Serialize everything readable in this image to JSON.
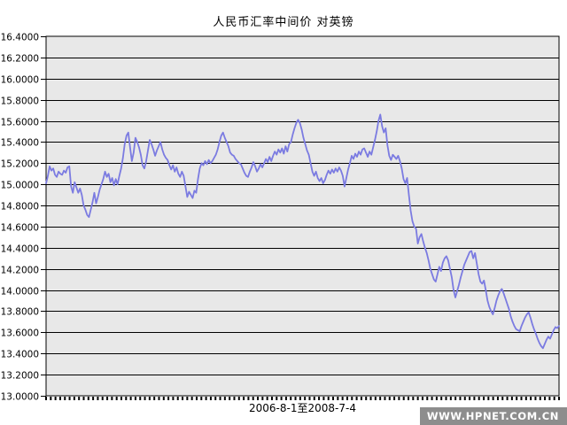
{
  "title": "人民币汇率中间价  对英镑",
  "watermark": {
    "text": "WWW.HPNET.COM.CN",
    "bg": "#8d8d8d",
    "fg": "#ffffff"
  },
  "chart_data": {
    "type": "line",
    "title": "人民币汇率中间价  对英镑",
    "xlabel": "2006-8-1至2008-7-4",
    "ylabel": "",
    "x_range": [
      "2006-8-1",
      "2008-7-4"
    ],
    "ylim": [
      13.0,
      16.4
    ],
    "ytick_step": 0.2,
    "ytick_labels": [
      "16.4000",
      "16.2000",
      "16.0000",
      "15.8000",
      "15.6000",
      "15.4000",
      "15.2000",
      "15.0000",
      "14.8000",
      "14.6000",
      "14.4000",
      "14.2000",
      "14.0000",
      "13.8000",
      "13.6000",
      "13.4000",
      "13.2000",
      "13.0000"
    ],
    "grid": "horizontal",
    "legend": "none",
    "colors": {
      "line": "#7b7be1",
      "plot_bg": "#e8e8e8",
      "grid": "#000000",
      "axis_text": "#000000"
    },
    "values": [
      15.01,
      15.08,
      15.17,
      15.13,
      15.15,
      15.09,
      15.07,
      15.12,
      15.1,
      15.09,
      15.13,
      15.11,
      15.16,
      15.17,
      14.98,
      14.92,
      15.02,
      14.97,
      14.92,
      14.96,
      14.9,
      14.8,
      14.76,
      14.71,
      14.69,
      14.76,
      14.83,
      14.92,
      14.82,
      14.88,
      14.95,
      15.0,
      15.05,
      15.12,
      15.07,
      15.1,
      15.02,
      15.06,
      14.99,
      15.05,
      15.0,
      15.08,
      15.15,
      15.25,
      15.38,
      15.46,
      15.49,
      15.35,
      15.22,
      15.3,
      15.44,
      15.4,
      15.35,
      15.28,
      15.18,
      15.15,
      15.22,
      15.32,
      15.42,
      15.38,
      15.33,
      15.27,
      15.32,
      15.36,
      15.4,
      15.33,
      15.28,
      15.25,
      15.23,
      15.18,
      15.14,
      15.18,
      15.12,
      15.16,
      15.1,
      15.07,
      15.12,
      15.08,
      14.98,
      14.88,
      14.93,
      14.9,
      14.87,
      14.94,
      14.92,
      15.05,
      15.15,
      15.2,
      15.18,
      15.22,
      15.19,
      15.23,
      15.2,
      15.22,
      15.25,
      15.28,
      15.33,
      15.4,
      15.46,
      15.49,
      15.44,
      15.4,
      15.36,
      15.3,
      15.28,
      15.27,
      15.24,
      15.22,
      15.2,
      15.19,
      15.15,
      15.11,
      15.08,
      15.07,
      15.12,
      15.16,
      15.21,
      15.17,
      15.12,
      15.15,
      15.19,
      15.16,
      15.2,
      15.24,
      15.21,
      15.26,
      15.22,
      15.27,
      15.31,
      15.28,
      15.33,
      15.3,
      15.34,
      15.29,
      15.36,
      15.31,
      15.38,
      15.4,
      15.47,
      15.53,
      15.58,
      15.61,
      15.58,
      15.52,
      15.44,
      15.38,
      15.32,
      15.28,
      15.2,
      15.12,
      15.08,
      15.12,
      15.06,
      15.03,
      15.06,
      15.01,
      15.04,
      15.09,
      15.13,
      15.1,
      15.14,
      15.11,
      15.15,
      15.12,
      15.16,
      15.13,
      15.08,
      14.98,
      15.06,
      15.14,
      15.2,
      15.27,
      15.24,
      15.29,
      15.26,
      15.31,
      15.28,
      15.33,
      15.34,
      15.3,
      15.26,
      15.31,
      15.28,
      15.35,
      15.42,
      15.5,
      15.6,
      15.66,
      15.55,
      15.49,
      15.53,
      15.37,
      15.27,
      15.23,
      15.28,
      15.26,
      15.24,
      15.27,
      15.22,
      15.15,
      15.05,
      15.01,
      15.06,
      14.9,
      14.75,
      14.65,
      14.6,
      14.58,
      14.44,
      14.5,
      14.53,
      14.46,
      14.4,
      14.35,
      14.28,
      14.2,
      14.15,
      14.1,
      14.08,
      14.15,
      14.22,
      14.18,
      14.26,
      14.3,
      14.32,
      14.28,
      14.2,
      14.12,
      14.0,
      13.93,
      13.99,
      14.05,
      14.12,
      14.18,
      14.24,
      14.28,
      14.32,
      14.36,
      14.37,
      14.3,
      14.35,
      14.25,
      14.15,
      14.08,
      14.06,
      14.09,
      14.0,
      13.9,
      13.84,
      13.8,
      13.77,
      13.83,
      13.9,
      13.95,
      13.99,
      14.01,
      13.97,
      13.92,
      13.87,
      13.82,
      13.75,
      13.7,
      13.66,
      13.63,
      13.62,
      13.61,
      13.66,
      13.7,
      13.74,
      13.77,
      13.79,
      13.74,
      13.68,
      13.63,
      13.59,
      13.54,
      13.5,
      13.47,
      13.45,
      13.49,
      13.53,
      13.56,
      13.54,
      13.58,
      13.62,
      13.65,
      13.64,
      13.66
    ]
  }
}
